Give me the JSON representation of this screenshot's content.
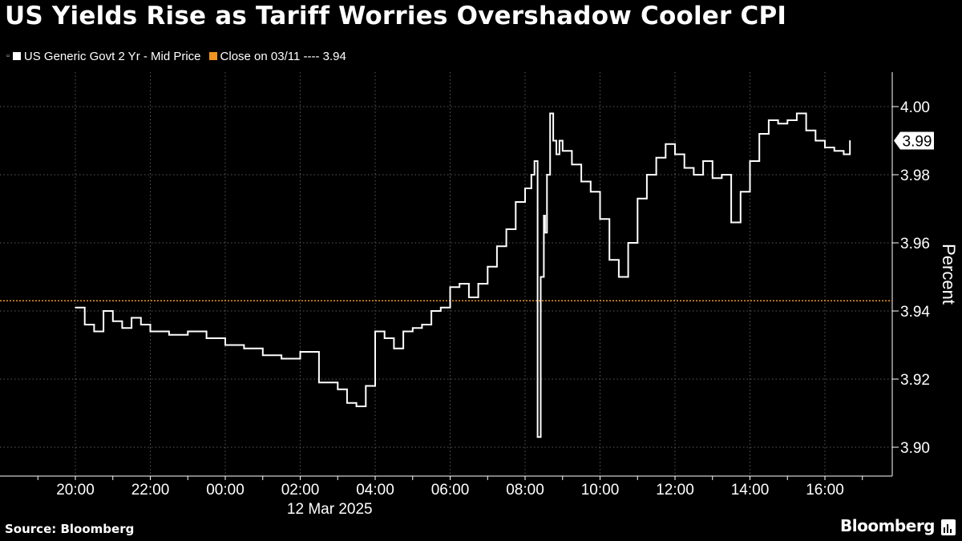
{
  "title": "US Yields Rise as Tariff Worries Overshadow Cooler CPI",
  "legend": {
    "series_label": "US Generic Govt 2 Yr - Mid Price",
    "series_color": "#ffffff",
    "ref_label": "Close on 03/11 ---- 3.94",
    "ref_color": "#f0941f"
  },
  "footer": {
    "source": "Source: Bloomberg",
    "brand": "Bloomberg"
  },
  "chart_data": {
    "type": "line",
    "title": "US Yields Rise as Tariff Worries Overshadow Cooler CPI",
    "xlabel": "12 Mar 2025",
    "ylabel": "Percent",
    "ylim": [
      3.89,
      4.01
    ],
    "xlim": [
      "19:00",
      "17:30"
    ],
    "y_ticks": [
      "3.90",
      "3.92",
      "3.94",
      "3.96",
      "3.98",
      "4.00"
    ],
    "x_ticks": [
      "20:00",
      "22:00",
      "00:00",
      "02:00",
      "04:00",
      "06:00",
      "08:00",
      "10:00",
      "12:00",
      "14:00",
      "16:00"
    ],
    "grid": true,
    "grid_style": "dotted",
    "legend_position": "top-left",
    "last_value": "3.99",
    "reference_line": {
      "label": "Close on 03/11",
      "value": 3.943,
      "color": "#f0941f"
    },
    "series": [
      {
        "name": "US Generic Govt 2 Yr - Mid Price",
        "color": "#ffffff",
        "x": [
          "20:00",
          "20:15",
          "20:30",
          "20:45",
          "21:00",
          "21:15",
          "21:30",
          "21:45",
          "22:00",
          "22:30",
          "23:00",
          "23:30",
          "00:00",
          "00:30",
          "01:00",
          "01:30",
          "02:00",
          "02:30",
          "03:00",
          "03:15",
          "03:30",
          "03:45",
          "04:00",
          "04:15",
          "04:30",
          "04:45",
          "05:00",
          "05:15",
          "05:30",
          "05:45",
          "06:00",
          "06:15",
          "06:30",
          "06:45",
          "07:00",
          "07:15",
          "07:30",
          "07:45",
          "08:00",
          "08:10",
          "08:15",
          "08:20",
          "08:25",
          "08:30",
          "08:32",
          "08:35",
          "08:40",
          "08:45",
          "08:50",
          "08:55",
          "09:00",
          "09:15",
          "09:30",
          "09:45",
          "10:00",
          "10:15",
          "10:30",
          "10:45",
          "11:00",
          "11:15",
          "11:30",
          "11:45",
          "12:00",
          "12:15",
          "12:30",
          "12:45",
          "13:00",
          "13:15",
          "13:30",
          "13:45",
          "14:00",
          "14:15",
          "14:30",
          "14:45",
          "15:00",
          "15:15",
          "15:30",
          "15:45",
          "16:00",
          "16:15",
          "16:30",
          "16:40"
        ],
        "values": [
          3.941,
          3.936,
          3.934,
          3.94,
          3.937,
          3.935,
          3.938,
          3.936,
          3.934,
          3.933,
          3.934,
          3.932,
          3.93,
          3.929,
          3.927,
          3.926,
          3.928,
          3.919,
          3.917,
          3.913,
          3.912,
          3.918,
          3.934,
          3.932,
          3.929,
          3.934,
          3.935,
          3.936,
          3.94,
          3.941,
          3.947,
          3.948,
          3.944,
          3.948,
          3.953,
          3.959,
          3.964,
          3.972,
          3.976,
          3.98,
          3.984,
          3.903,
          3.95,
          3.968,
          3.963,
          3.98,
          3.998,
          3.99,
          3.986,
          3.99,
          3.987,
          3.983,
          3.978,
          3.975,
          3.967,
          3.955,
          3.95,
          3.96,
          3.973,
          3.98,
          3.985,
          3.989,
          3.986,
          3.982,
          3.98,
          3.984,
          3.979,
          3.98,
          3.966,
          3.975,
          3.984,
          3.992,
          3.996,
          3.995,
          3.996,
          3.998,
          3.993,
          3.99,
          3.988,
          3.987,
          3.986,
          3.99
        ]
      }
    ]
  }
}
